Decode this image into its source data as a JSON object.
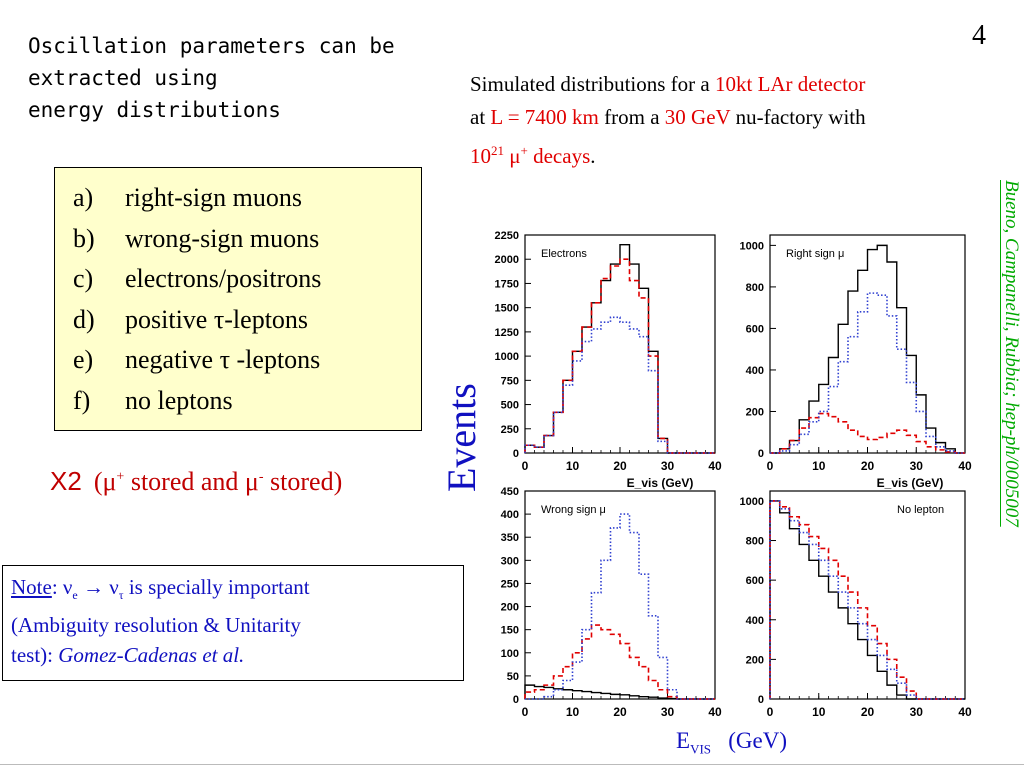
{
  "slide": {
    "page_number": "4",
    "title_lines": [
      "Oscillation parameters can be",
      "extracted using",
      "energy distributions"
    ],
    "description": {
      "p1": "Simulated distributions for a ",
      "p2": "10kt LAr detector",
      "p3": "at ",
      "p4": "L = 7400 km",
      "p5": " from a ",
      "p6": "30 GeV",
      "p7": " nu-factory with",
      "p8": "10",
      "p8sup": "21",
      "p9": " μ",
      "p9sup": "+",
      "p10": " decays",
      "p11": "."
    },
    "list_items": [
      {
        "marker": "a)",
        "text": "right-sign muons"
      },
      {
        "marker": "b)",
        "text": "wrong-sign muons"
      },
      {
        "marker": "c)",
        "text": "electrons/positrons"
      },
      {
        "marker": "d)",
        "text": "positive τ-leptons"
      },
      {
        "marker": "e)",
        "text": "negative τ -leptons"
      },
      {
        "marker": "f)",
        "text": "no leptons"
      }
    ],
    "x2": {
      "label": "X2",
      "a": "(μ",
      "asup": "+",
      "b": " stored and μ",
      "bsup": "-",
      "c": " stored)"
    },
    "note": {
      "label": "Note",
      "colon": ":",
      "nu_e": "  ν",
      "nu_e_sub": "e",
      "arrow": " → ν",
      "nu_tau_sub": "τ",
      "rest1": " is specially important",
      "line2": "(Ambiguity resolution & Unitarity",
      "line3a": "test):  ",
      "line3b": "Gomez-Cadenas et al."
    },
    "events_label": "Events",
    "citation": "Bueno, Campanelli, Rubbia; hep-ph/0005007",
    "evis": {
      "e": "E",
      "sub": "VIS",
      "unit": "(GeV)"
    },
    "colors": {
      "red": "#e00000",
      "blue": "#1010c0",
      "green": "#00aa00",
      "box": "#ffffcc"
    }
  },
  "chart_data": [
    {
      "type": "line",
      "title": "Electrons",
      "xlabel": "E_vis (GeV)",
      "xlim": [
        0,
        40
      ],
      "ylim": [
        0,
        2250
      ],
      "xticks": [
        0,
        10,
        20,
        30,
        40
      ],
      "yticks": [
        0,
        250,
        500,
        750,
        1000,
        1250,
        1500,
        1750,
        2000,
        2250
      ],
      "bin_edges": [
        0,
        2,
        4,
        6,
        8,
        10,
        12,
        14,
        16,
        18,
        20,
        22,
        24,
        26,
        28,
        30,
        32,
        34,
        36,
        38,
        40
      ],
      "series": [
        {
          "color": "black",
          "style": "solid",
          "values": [
            80,
            60,
            180,
            420,
            750,
            1050,
            1300,
            1550,
            1780,
            1950,
            2150,
            1950,
            1700,
            1050,
            150,
            0,
            0,
            0,
            0,
            0
          ]
        },
        {
          "color": "red",
          "style": "dashed",
          "values": [
            80,
            60,
            180,
            420,
            750,
            1050,
            1300,
            1550,
            1800,
            1930,
            2000,
            1780,
            1600,
            1000,
            150,
            0,
            0,
            0,
            0,
            0
          ]
        },
        {
          "color": "blue",
          "style": "dotted",
          "values": [
            80,
            60,
            180,
            420,
            700,
            950,
            1150,
            1280,
            1350,
            1400,
            1350,
            1280,
            1200,
            850,
            120,
            0,
            0,
            0,
            0,
            0
          ]
        }
      ]
    },
    {
      "type": "line",
      "title": "Right sign μ",
      "xlabel": "E_vis (GeV)",
      "xlim": [
        0,
        40
      ],
      "ylim": [
        0,
        1050
      ],
      "xticks": [
        0,
        10,
        20,
        30,
        40
      ],
      "yticks": [
        0,
        200,
        400,
        600,
        800,
        1000
      ],
      "bin_edges": [
        0,
        2,
        4,
        6,
        8,
        10,
        12,
        14,
        16,
        18,
        20,
        22,
        24,
        26,
        28,
        30,
        32,
        34,
        36,
        38,
        40
      ],
      "series": [
        {
          "color": "black",
          "style": "solid",
          "values": [
            0,
            20,
            60,
            160,
            250,
            330,
            460,
            620,
            780,
            880,
            980,
            1000,
            920,
            700,
            470,
            280,
            120,
            50,
            20,
            0
          ]
        },
        {
          "color": "red",
          "style": "dashed",
          "values": [
            0,
            20,
            60,
            120,
            170,
            190,
            175,
            150,
            110,
            80,
            65,
            75,
            95,
            110,
            85,
            55,
            30,
            15,
            5,
            0
          ]
        },
        {
          "color": "blue",
          "style": "dotted",
          "values": [
            0,
            10,
            40,
            90,
            150,
            200,
            320,
            440,
            560,
            680,
            770,
            760,
            660,
            500,
            340,
            200,
            80,
            30,
            10,
            0
          ]
        }
      ]
    },
    {
      "type": "line",
      "title": "Wrong sign μ",
      "xlabel": "",
      "xlim": [
        0,
        40
      ],
      "ylim": [
        0,
        450
      ],
      "xticks": [
        0,
        10,
        20,
        30,
        40
      ],
      "yticks": [
        0,
        50,
        100,
        150,
        200,
        250,
        300,
        350,
        400,
        450
      ],
      "bin_edges": [
        0,
        2,
        4,
        6,
        8,
        10,
        12,
        14,
        16,
        18,
        20,
        22,
        24,
        26,
        28,
        30,
        32,
        34,
        36,
        38,
        40
      ],
      "series": [
        {
          "color": "black",
          "style": "solid",
          "values": [
            30,
            27,
            25,
            22,
            20,
            18,
            16,
            14,
            12,
            10,
            9,
            7,
            5,
            4,
            2,
            1,
            0,
            0,
            0,
            0
          ]
        },
        {
          "color": "red",
          "style": "dashed",
          "values": [
            15,
            20,
            30,
            50,
            70,
            100,
            130,
            160,
            150,
            140,
            120,
            90,
            70,
            40,
            20,
            5,
            0,
            0,
            0,
            0
          ]
        },
        {
          "color": "blue",
          "style": "dotted",
          "values": [
            0,
            0,
            5,
            20,
            40,
            80,
            150,
            230,
            300,
            370,
            400,
            360,
            270,
            180,
            90,
            20,
            0,
            0,
            0,
            0
          ]
        }
      ]
    },
    {
      "type": "line",
      "title": "No lepton",
      "xlabel": "",
      "xlim": [
        0,
        40
      ],
      "ylim": [
        0,
        1050
      ],
      "xticks": [
        0,
        10,
        20,
        30,
        40
      ],
      "yticks": [
        0,
        200,
        400,
        600,
        800,
        1000
      ],
      "bin_edges": [
        0,
        2,
        4,
        6,
        8,
        10,
        12,
        14,
        16,
        18,
        20,
        22,
        24,
        26,
        28,
        30,
        32,
        34,
        36,
        38,
        40
      ],
      "series": [
        {
          "color": "black",
          "style": "solid",
          "values": [
            1000,
            940,
            860,
            780,
            700,
            620,
            540,
            460,
            380,
            300,
            220,
            140,
            70,
            20,
            0,
            0,
            0,
            0,
            0,
            0
          ]
        },
        {
          "color": "red",
          "style": "dashed",
          "values": [
            1000,
            970,
            920,
            880,
            820,
            760,
            700,
            620,
            540,
            460,
            370,
            280,
            200,
            110,
            40,
            0,
            0,
            0,
            0,
            0
          ]
        },
        {
          "color": "blue",
          "style": "dotted",
          "values": [
            1000,
            960,
            900,
            840,
            780,
            700,
            620,
            540,
            460,
            380,
            300,
            220,
            150,
            80,
            20,
            0,
            0,
            0,
            0,
            0
          ]
        }
      ]
    }
  ]
}
